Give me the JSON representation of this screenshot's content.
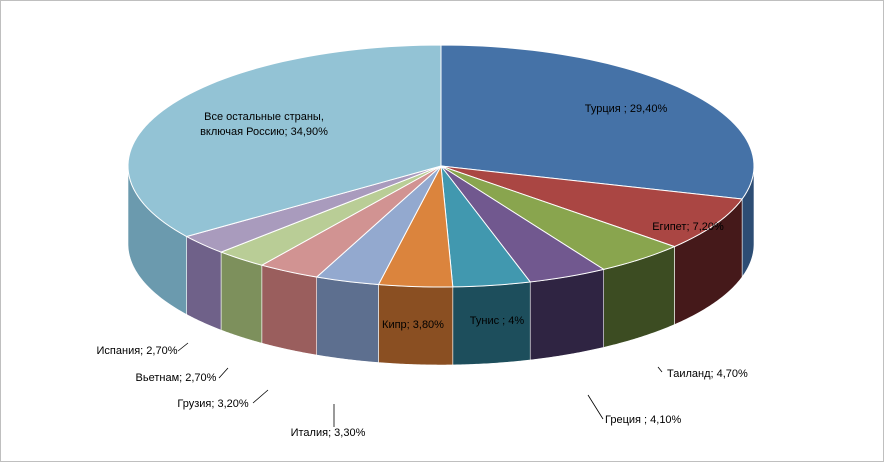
{
  "chart_data": {
    "type": "pie",
    "title": "",
    "slices": [
      {
        "label": "Турция ; 29,40%",
        "value": 29.4,
        "color": "#4572a7",
        "side": "#2d4d74"
      },
      {
        "label": "Египет; 7,20%",
        "value": 7.2,
        "color": "#aa4643",
        "side": "#45191a"
      },
      {
        "label": "Таиланд; 4,70%",
        "value": 4.7,
        "color": "#89a54e",
        "side": "#3c4c22"
      },
      {
        "label": "Греция ; 4,10%",
        "value": 4.1,
        "color": "#71588f",
        "side": "#2f2442"
      },
      {
        "label": "Тунис ; 4%",
        "value": 4.0,
        "color": "#4198af",
        "side": "#1d4e5c"
      },
      {
        "label": "Кипр; 3,80%",
        "value": 3.8,
        "color": "#db843d",
        "side": "#8a4f22"
      },
      {
        "label": "Италия; 3,30%",
        "value": 3.3,
        "color": "#93a9cf",
        "side": "#5d6f8f"
      },
      {
        "label": "Грузия; 3,20%",
        "value": 3.2,
        "color": "#d19392",
        "side": "#9a5e5d"
      },
      {
        "label": "Вьетнам; 2,70%",
        "value": 2.7,
        "color": "#b9cd96",
        "side": "#7d905c"
      },
      {
        "label": "Испания;  2,70%",
        "value": 2.7,
        "color": "#a99bbd",
        "side": "#6f6189"
      },
      {
        "label": "Все остальные страны, включая Россию; 34,90%",
        "value": 34.9,
        "color": "#93c3d5",
        "side": "#6b9aae",
        "label_lines": [
          "Все остальные страны,",
          "включая Россию; 34,90%"
        ]
      }
    ]
  }
}
